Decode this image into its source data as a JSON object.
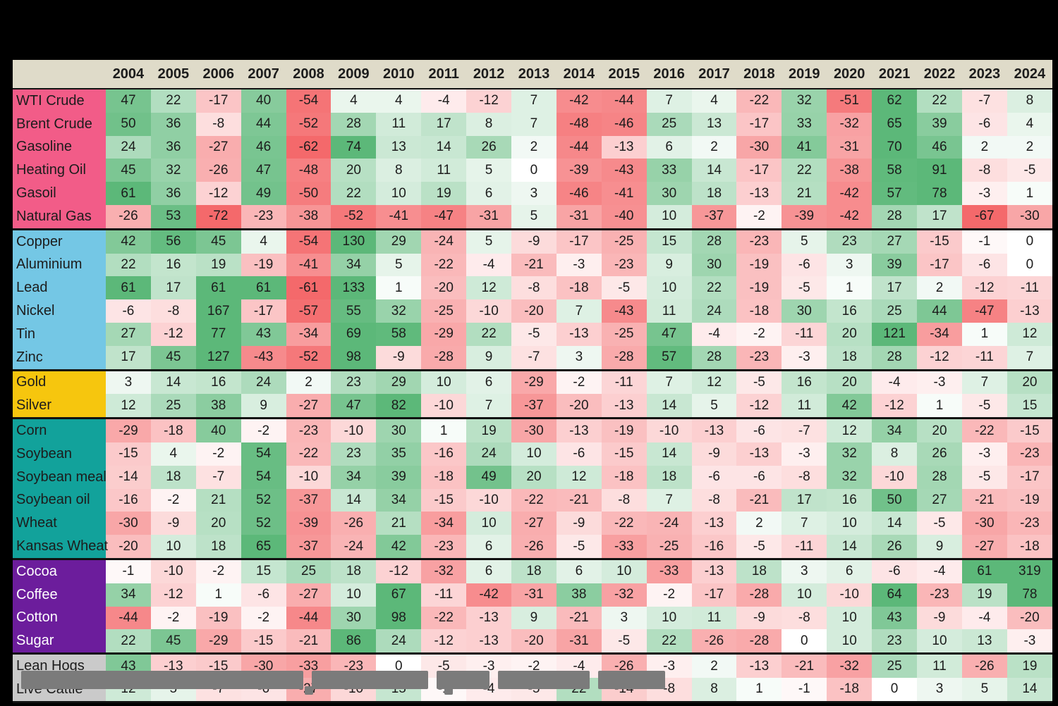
{
  "colors": {
    "page_bg": "#000000",
    "header_bg": "#DFDBC9",
    "header_text": "#1c1c1c",
    "cell_text": "#1c1c1c",
    "positive_max": "#5CB879",
    "negative_max": "#F4696B",
    "zero": "#FFFFFF"
  },
  "chart_data": {
    "type": "heatmap",
    "title": "",
    "columns": [
      "2004",
      "2005",
      "2006",
      "2007",
      "2008",
      "2009",
      "2010",
      "2011",
      "2012",
      "2013",
      "2014",
      "2015",
      "2016",
      "2017",
      "2018",
      "2019",
      "2020",
      "2021",
      "2022",
      "2023",
      "2024"
    ],
    "color_scale": {
      "cap": 60,
      "gamma": 0.75,
      "positive_max": "#5CB879",
      "negative_max": "#F4696B"
    },
    "groups": [
      {
        "name": "energy",
        "label_bg": "#F25C88",
        "label_color": "#1c1c1c",
        "rows": [
          {
            "label": "WTI Crude",
            "values": [
              47,
              22,
              -17,
              40,
              -54,
              4,
              4,
              -4,
              -12,
              7,
              -42,
              -44,
              7,
              4,
              -22,
              32,
              -51,
              62,
              22,
              -7,
              8
            ]
          },
          {
            "label": "Brent Crude",
            "values": [
              50,
              36,
              -8,
              44,
              -52,
              28,
              11,
              17,
              8,
              7,
              -48,
              -46,
              25,
              13,
              -17,
              33,
              -32,
              65,
              39,
              -6,
              4
            ]
          },
          {
            "label": "Gasoline",
            "values": [
              24,
              36,
              -27,
              46,
              -62,
              74,
              13,
              14,
              26,
              2,
              -44,
              -13,
              6,
              2,
              -30,
              41,
              -31,
              70,
              46,
              2,
              2
            ]
          },
          {
            "label": "Heating Oil",
            "values": [
              45,
              32,
              -26,
              47,
              -48,
              20,
              8,
              11,
              5,
              0,
              -39,
              -43,
              33,
              14,
              -17,
              22,
              -38,
              58,
              91,
              -8,
              -5
            ]
          },
          {
            "label": "Gasoil",
            "values": [
              61,
              36,
              -12,
              49,
              -50,
              22,
              10,
              19,
              6,
              3,
              -46,
              -41,
              30,
              18,
              -13,
              21,
              -42,
              57,
              78,
              -3,
              1
            ]
          },
          {
            "label": "Natural Gas",
            "values": [
              -26,
              53,
              -72,
              -23,
              -38,
              -52,
              -41,
              -47,
              -31,
              5,
              -31,
              -40,
              10,
              -37,
              -2,
              -39,
              -42,
              28,
              17,
              -67,
              -30
            ]
          }
        ]
      },
      {
        "name": "industrial-metals",
        "label_bg": "#74C7E5",
        "label_color": "#1c1c1c",
        "rows": [
          {
            "label": "Copper",
            "values": [
              42,
              56,
              45,
              4,
              -54,
              130,
              29,
              -24,
              5,
              -9,
              -17,
              -25,
              15,
              28,
              -23,
              5,
              23,
              27,
              -15,
              -1,
              0
            ]
          },
          {
            "label": "Aluminium",
            "values": [
              22,
              16,
              19,
              -19,
              -41,
              34,
              5,
              -22,
              -4,
              -21,
              -3,
              -23,
              9,
              30,
              -19,
              -6,
              3,
              39,
              -17,
              -6,
              0
            ]
          },
          {
            "label": "Lead",
            "values": [
              61,
              17,
              61,
              61,
              -61,
              133,
              1,
              -20,
              12,
              -8,
              -18,
              -5,
              10,
              22,
              -19,
              -5,
              1,
              17,
              2,
              -12,
              -11
            ]
          },
          {
            "label": "Nickel",
            "values": [
              -6,
              -8,
              167,
              -17,
              -57,
              55,
              32,
              -25,
              -10,
              -20,
              7,
              -43,
              11,
              24,
              -18,
              30,
              16,
              25,
              44,
              -47,
              -13
            ]
          },
          {
            "label": "Tin",
            "values": [
              27,
              -12,
              77,
              43,
              -34,
              69,
              58,
              -29,
              22,
              -5,
              -13,
              -25,
              47,
              -4,
              -2,
              -11,
              20,
              121,
              -34,
              1,
              12
            ]
          },
          {
            "label": "Zinc",
            "values": [
              17,
              45,
              127,
              -43,
              -52,
              98,
              -9,
              -28,
              9,
              -7,
              3,
              -28,
              57,
              28,
              -23,
              -3,
              18,
              28,
              -12,
              -11,
              7
            ]
          }
        ]
      },
      {
        "name": "precious-metals",
        "label_bg": "#F6C60E",
        "label_color": "#1c1c1c",
        "rows": [
          {
            "label": "Gold",
            "values": [
              3,
              14,
              16,
              24,
              2,
              23,
              29,
              10,
              6,
              -29,
              -2,
              -11,
              7,
              12,
              -5,
              16,
              20,
              -4,
              -3,
              7,
              20
            ]
          },
          {
            "label": "Silver",
            "values": [
              12,
              25,
              38,
              9,
              -27,
              47,
              82,
              -10,
              7,
              -37,
              -20,
              -13,
              14,
              5,
              -12,
              11,
              42,
              -12,
              1,
              -5,
              15
            ]
          }
        ]
      },
      {
        "name": "grains",
        "label_bg": "#12A29B",
        "label_color": "#1c1c1c",
        "rows": [
          {
            "label": "Corn",
            "values": [
              -29,
              -18,
              40,
              -2,
              -23,
              -10,
              30,
              1,
              19,
              -30,
              -13,
              -19,
              -10,
              -13,
              -6,
              -7,
              12,
              34,
              20,
              -22,
              -15
            ]
          },
          {
            "label": "Soybean",
            "values": [
              -15,
              4,
              -2,
              54,
              -22,
              23,
              35,
              -16,
              24,
              10,
              -6,
              -15,
              14,
              -9,
              -13,
              -3,
              32,
              8,
              26,
              -3,
              -23
            ]
          },
          {
            "label": "Soybean meal",
            "values": [
              -14,
              18,
              -7,
              54,
              -10,
              34,
              39,
              -18,
              49,
              20,
              12,
              -18,
              18,
              -6,
              -6,
              -8,
              32,
              -10,
              28,
              -5,
              -17
            ]
          },
          {
            "label": "Soybean oil",
            "values": [
              -16,
              -2,
              21,
              52,
              -37,
              14,
              34,
              -15,
              -10,
              -22,
              -21,
              -8,
              7,
              -8,
              -21,
              17,
              16,
              50,
              27,
              -21,
              -19
            ]
          },
          {
            "label": "Wheat",
            "values": [
              -30,
              -9,
              20,
              52,
              -39,
              -26,
              21,
              -34,
              10,
              -27,
              -9,
              -22,
              -24,
              -13,
              2,
              7,
              10,
              14,
              -5,
              -30,
              -23
            ]
          },
          {
            "label": "Kansas Wheat",
            "values": [
              -20,
              10,
              18,
              65,
              -37,
              -24,
              42,
              -23,
              6,
              -26,
              -5,
              -33,
              -25,
              -16,
              -5,
              -11,
              14,
              26,
              9,
              -27,
              -18
            ]
          }
        ]
      },
      {
        "name": "softs",
        "label_bg": "#6C1D9C",
        "label_color": "#ffffff",
        "rows": [
          {
            "label": "Cocoa",
            "values": [
              -1,
              -10,
              -2,
              15,
              25,
              18,
              -12,
              -32,
              6,
              18,
              6,
              10,
              -33,
              -13,
              18,
              3,
              6,
              -6,
              -4,
              61,
              319
            ]
          },
          {
            "label": "Coffee",
            "values": [
              34,
              -12,
              1,
              -6,
              -27,
              10,
              67,
              -11,
              -42,
              -31,
              38,
              -32,
              -2,
              -17,
              -28,
              10,
              -10,
              64,
              -23,
              19,
              78
            ]
          },
          {
            "label": "Cotton",
            "values": [
              -44,
              -2,
              -19,
              -2,
              -44,
              30,
              98,
              -22,
              -13,
              9,
              -21,
              3,
              10,
              11,
              -9,
              -8,
              10,
              43,
              -9,
              -4,
              -20
            ]
          },
          {
            "label": "Sugar",
            "values": [
              22,
              45,
              -29,
              -15,
              -21,
              86,
              24,
              -12,
              -13,
              -20,
              -31,
              -5,
              22,
              -26,
              -28,
              0,
              10,
              23,
              10,
              13,
              -3
            ]
          }
        ]
      },
      {
        "name": "livestock",
        "label_bg": "#CACACA",
        "label_color": "#1c1c1c",
        "rows": [
          {
            "label": "Lean Hogs",
            "values": [
              43,
              -13,
              -15,
              -30,
              -33,
              -23,
              0,
              -5,
              -3,
              -2,
              -4,
              -26,
              -3,
              2,
              -13,
              -21,
              -32,
              25,
              11,
              -26,
              19
            ]
          },
          {
            "label": "Live Cattle",
            "values": [
              12,
              5,
              -7,
              -6,
              -27,
              -10,
              15,
              -1,
              -4,
              -5,
              22,
              -14,
              -8,
              8,
              1,
              -1,
              -18,
              0,
              3,
              5,
              14
            ]
          }
        ]
      }
    ]
  }
}
